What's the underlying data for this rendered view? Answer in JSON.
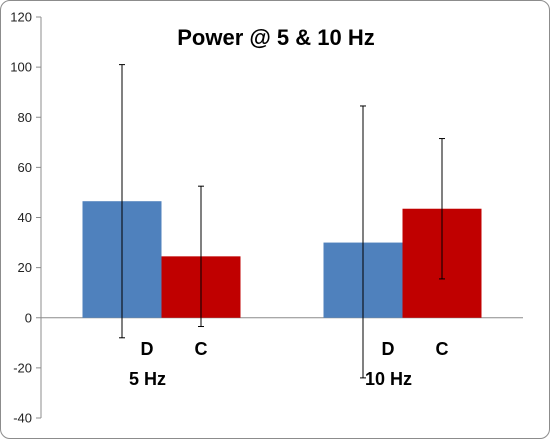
{
  "chart_data": {
    "type": "bar",
    "title": "Power @ 5 & 10 Hz",
    "xlabel": "",
    "ylabel": "",
    "ylim": [
      -40,
      120
    ],
    "yticks": [
      -40,
      -20,
      0,
      20,
      40,
      60,
      80,
      100,
      120
    ],
    "categories": [
      "5 Hz",
      "10 Hz"
    ],
    "series": [
      {
        "name": "D",
        "color": "#4f81bd",
        "values": [
          46.5,
          30
        ],
        "error_low": [
          -8,
          -24
        ],
        "error_high": [
          101,
          84.5
        ]
      },
      {
        "name": "C",
        "color": "#c00000",
        "values": [
          24.5,
          43.5
        ],
        "error_low": [
          -3.5,
          15.5
        ],
        "error_high": [
          52.5,
          71.5
        ]
      }
    ],
    "grid": false,
    "legend": "none"
  }
}
